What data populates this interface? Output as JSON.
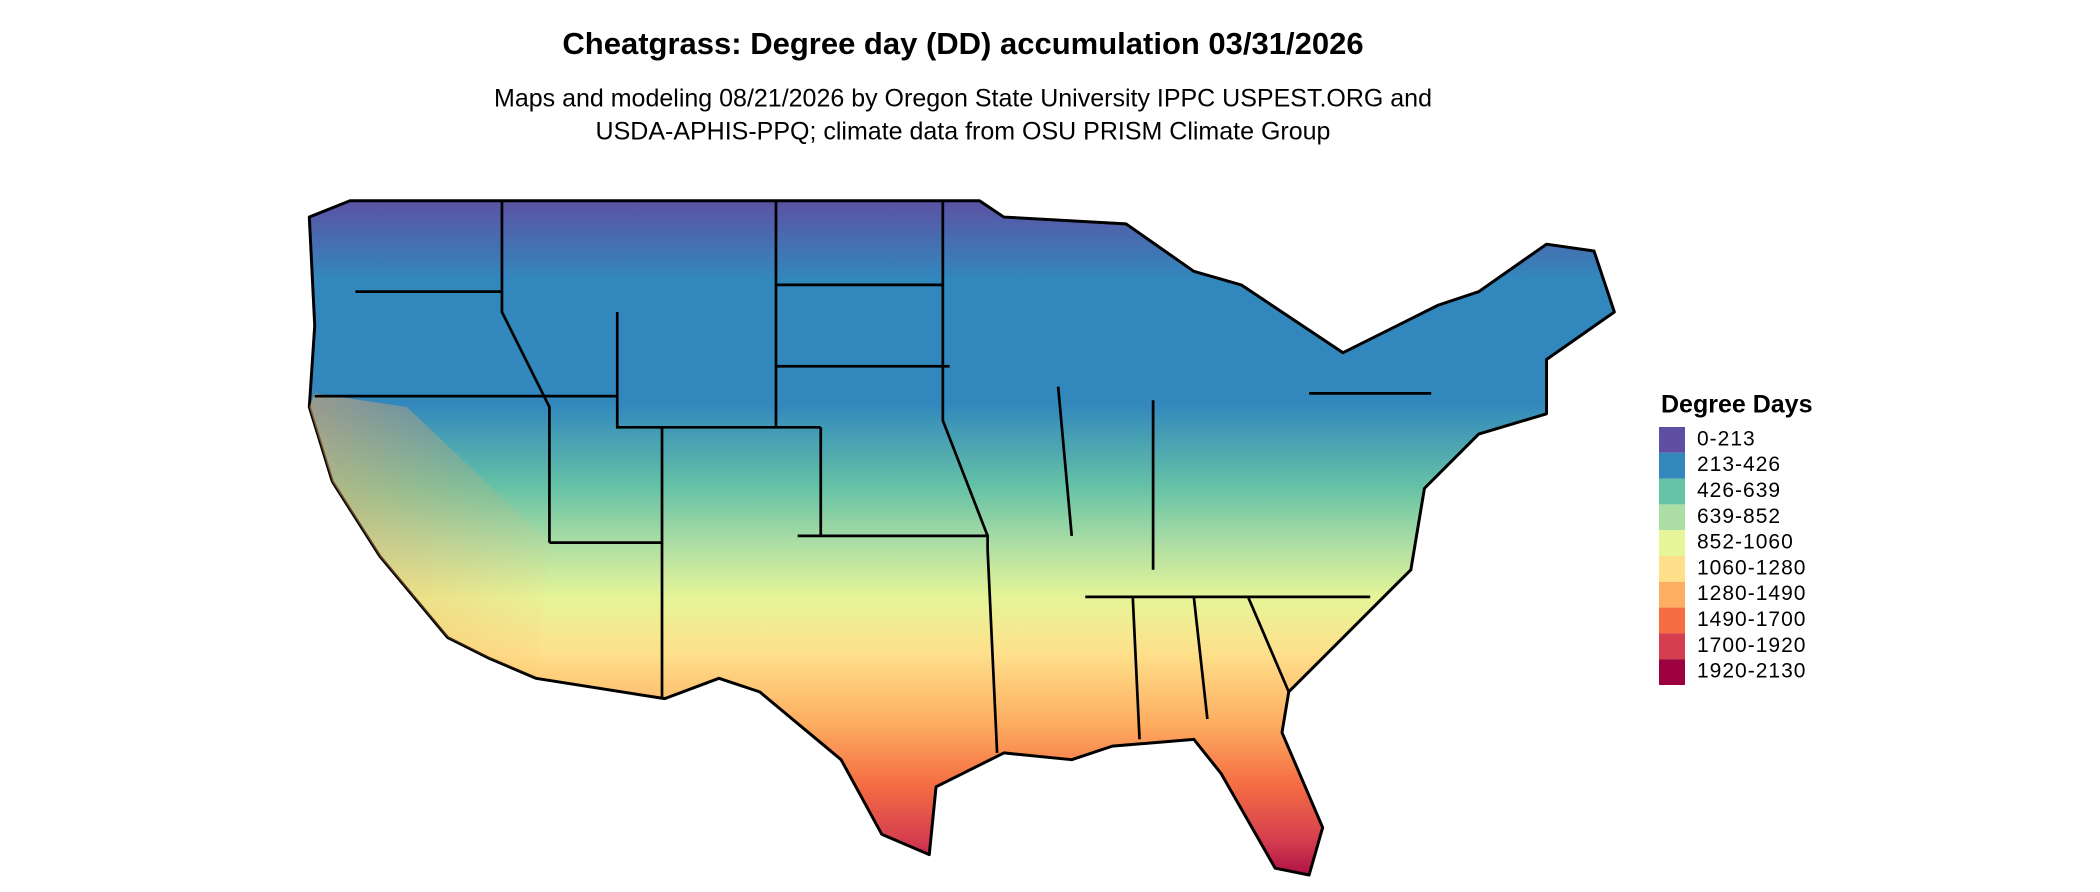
{
  "header": {
    "title": "Cheatgrass: Degree day (DD) accumulation 03/31/2026",
    "subtitle_lines": [
      "Maps and modeling 08/21/2026 by Oregon State University IPPC USPEST.ORG and",
      "USDA-APHIS-PPQ; climate data from OSU PRISM Climate Group"
    ]
  },
  "legend": {
    "title": "Degree Days",
    "items": [
      {
        "label": "0-213",
        "color": "#5e4fa2"
      },
      {
        "label": "213-426",
        "color": "#3288bd"
      },
      {
        "label": "426-639",
        "color": "#66c2a5"
      },
      {
        "label": "639-852",
        "color": "#abdda4"
      },
      {
        "label": "852-1060",
        "color": "#e6f598"
      },
      {
        "label": "1060-1280",
        "color": "#fee08b"
      },
      {
        "label": "1280-1490",
        "color": "#fdae61"
      },
      {
        "label": "1490-1700",
        "color": "#f46d43"
      },
      {
        "label": "1700-1920",
        "color": "#d53e4f"
      },
      {
        "label": "1920-2130",
        "color": "#9e0142"
      }
    ]
  }
}
